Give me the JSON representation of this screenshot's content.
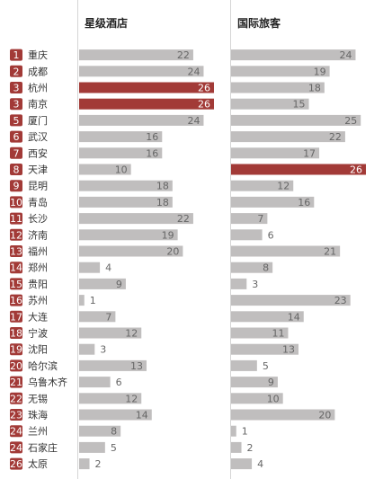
{
  "chart_data": {
    "type": "bar",
    "columns": [
      {
        "key": "hotels",
        "title": "星级酒店",
        "xlim": [
          0,
          26
        ]
      },
      {
        "key": "tourists",
        "title": "国际旅客",
        "xlim": [
          0,
          26
        ]
      }
    ],
    "rows": [
      {
        "rank": "1",
        "city": "重庆",
        "hotels": 22,
        "tourists": 24
      },
      {
        "rank": "2",
        "city": "成都",
        "hotels": 24,
        "tourists": 19
      },
      {
        "rank": "3",
        "city": "杭州",
        "hotels": 26,
        "tourists": 18
      },
      {
        "rank": "3",
        "city": "南京",
        "hotels": 26,
        "tourists": 15
      },
      {
        "rank": "5",
        "city": "厦门",
        "hotels": 24,
        "tourists": 25
      },
      {
        "rank": "6",
        "city": "武汉",
        "hotels": 16,
        "tourists": 22
      },
      {
        "rank": "7",
        "city": "西安",
        "hotels": 16,
        "tourists": 17
      },
      {
        "rank": "8",
        "city": "天津",
        "hotels": 10,
        "tourists": 26
      },
      {
        "rank": "9",
        "city": "昆明",
        "hotels": 18,
        "tourists": 12
      },
      {
        "rank": "10",
        "city": "青岛",
        "hotels": 18,
        "tourists": 16
      },
      {
        "rank": "11",
        "city": "长沙",
        "hotels": 22,
        "tourists": 7
      },
      {
        "rank": "12",
        "city": "济南",
        "hotels": 19,
        "tourists": 6
      },
      {
        "rank": "13",
        "city": "福州",
        "hotels": 20,
        "tourists": 21
      },
      {
        "rank": "14",
        "city": "郑州",
        "hotels": 4,
        "tourists": 8
      },
      {
        "rank": "15",
        "city": "贵阳",
        "hotels": 9,
        "tourists": 3
      },
      {
        "rank": "16",
        "city": "苏州",
        "hotels": 1,
        "tourists": 23
      },
      {
        "rank": "17",
        "city": "大连",
        "hotels": 7,
        "tourists": 14
      },
      {
        "rank": "18",
        "city": "宁波",
        "hotels": 12,
        "tourists": 11
      },
      {
        "rank": "19",
        "city": "沈阳",
        "hotels": 3,
        "tourists": 13
      },
      {
        "rank": "20",
        "city": "哈尔滨",
        "hotels": 13,
        "tourists": 5
      },
      {
        "rank": "21",
        "city": "乌鲁木齐",
        "hotels": 6,
        "tourists": 9
      },
      {
        "rank": "22",
        "city": "无锡",
        "hotels": 12,
        "tourists": 10
      },
      {
        "rank": "23",
        "city": "珠海",
        "hotels": 14,
        "tourists": 20
      },
      {
        "rank": "24",
        "city": "兰州",
        "hotels": 8,
        "tourists": 1
      },
      {
        "rank": "24",
        "city": "石家庄",
        "hotels": 5,
        "tourists": 2
      },
      {
        "rank": "26",
        "city": "太原",
        "hotels": 2,
        "tourists": 4
      }
    ],
    "colors": {
      "rank_badge": "#a23a37",
      "bar": "#c0bebe",
      "bar_highlight": "#a23a37",
      "divider": "#d6d6d6"
    }
  }
}
